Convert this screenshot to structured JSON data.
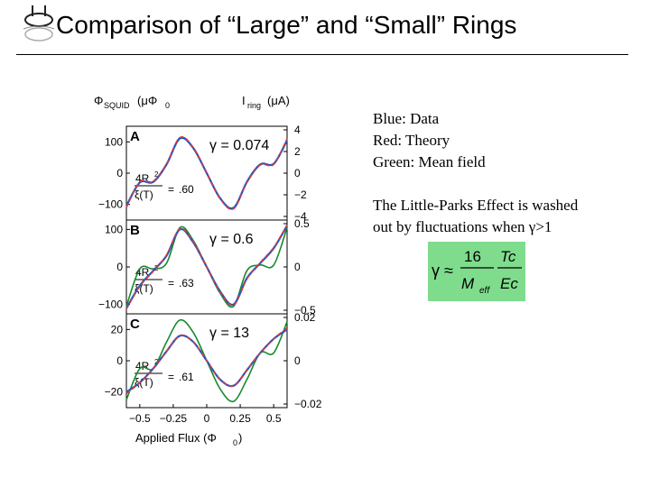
{
  "slide": {
    "title": "Comparison of “Large” and “Small” Rings"
  },
  "notes": {
    "line1": "Blue: Data",
    "line2": "Red: Theory",
    "line3": "Green: Mean field",
    "line4": "The Little-Parks Effect is washed",
    "line5": "out by fluctuations when γ>1"
  },
  "formula": {
    "lhs": "γ ≈",
    "num16": "16",
    "numTc": "Tc",
    "denM": "M",
    "denEff": "eff",
    "denEc": "Ec"
  },
  "colors": {
    "data": "#2457c9",
    "theory": "#d83a3a",
    "meanfield": "#168a2c",
    "formula_bg": "#7fdc8c"
  },
  "chart_data": {
    "type": "line",
    "ylabel_left": "Φ",
    "ylabel_left_sub": "SQUID",
    "ylabel_left_unit": "(μΦ",
    "ylabel_left_unit_sub": "0",
    "ylabel_right": "I",
    "ylabel_right_sub": "ring",
    "ylabel_right_unit": "(μA)",
    "xlabel": "Applied Flux (Φ",
    "xlabel_sub": "0",
    "xlim": [
      -0.6,
      0.6
    ],
    "xticks": [
      "−0.5",
      "−0.25",
      "0",
      "0.25",
      "0.5"
    ],
    "panels": [
      {
        "label": "A",
        "gamma": "γ = 0.074",
        "ratio_value": ".60",
        "left_ylim": [
          -150,
          150
        ],
        "left_ticks": [
          "100",
          "0",
          "−100"
        ],
        "right_ticks": [
          "4",
          "2",
          "0",
          "−2",
          "−4"
        ],
        "x": [
          -0.6,
          -0.5,
          -0.4,
          -0.3,
          -0.2,
          -0.1,
          0,
          0.1,
          0.2,
          0.3,
          0.4,
          0.5,
          0.6
        ],
        "data": [
          -105,
          -30,
          -28,
          28,
          112,
          80,
          0,
          -80,
          -112,
          -28,
          28,
          30,
          105
        ],
        "theory": [
          -110,
          -28,
          -26,
          30,
          114,
          82,
          0,
          -82,
          -114,
          -30,
          26,
          28,
          110
        ],
        "meanfield": [
          -105,
          -30,
          -28,
          28,
          110,
          80,
          0,
          -80,
          -110,
          -28,
          28,
          30,
          105
        ]
      },
      {
        "label": "B",
        "gamma": "γ = 0.6",
        "ratio_value": ".63",
        "left_ylim": [
          -125,
          125
        ],
        "left_ticks": [
          "100",
          "0",
          "−100"
        ],
        "right_ticks": [
          "0.5",
          "0",
          "−0.5"
        ],
        "x": [
          -0.6,
          -0.5,
          -0.4,
          -0.3,
          -0.2,
          -0.1,
          0,
          0.1,
          0.2,
          0.3,
          0.4,
          0.5,
          0.6
        ],
        "data": [
          -110,
          -50,
          -10,
          30,
          100,
          65,
          0,
          -65,
          -100,
          -30,
          10,
          50,
          110
        ],
        "theory": [
          -112,
          -52,
          -12,
          32,
          102,
          66,
          0,
          -66,
          -102,
          -32,
          12,
          52,
          112
        ],
        "meanfield": [
          -105,
          -5,
          -5,
          10,
          105,
          70,
          0,
          -70,
          -105,
          -10,
          5,
          5,
          105
        ]
      },
      {
        "label": "C",
        "gamma": "γ = 13",
        "ratio_value": ".61",
        "left_ylim": [
          -30,
          30
        ],
        "left_ticks": [
          "20",
          "0",
          "−20"
        ],
        "right_ticks": [
          "0.02",
          "0",
          "−0.02"
        ],
        "x": [
          -0.6,
          -0.5,
          -0.4,
          -0.3,
          -0.2,
          -0.1,
          0,
          0.1,
          0.2,
          0.3,
          0.4,
          0.5,
          0.6
        ],
        "data": [
          -20,
          -14,
          -5,
          6,
          16,
          12,
          0,
          -12,
          -16,
          -6,
          5,
          14,
          20
        ],
        "theory": [
          -21,
          -14,
          -5,
          6,
          16,
          12,
          0,
          -12,
          -16,
          -6,
          5,
          14,
          21
        ],
        "meanfield": [
          -25,
          -5,
          -5,
          12,
          26,
          18,
          0,
          -18,
          -26,
          -12,
          5,
          5,
          25
        ]
      }
    ],
    "ratio_label_top": "4R",
    "ratio_label_sup": "2",
    "ratio_label_bottom": "ξ(T)",
    "ratio_eq": "= "
  }
}
